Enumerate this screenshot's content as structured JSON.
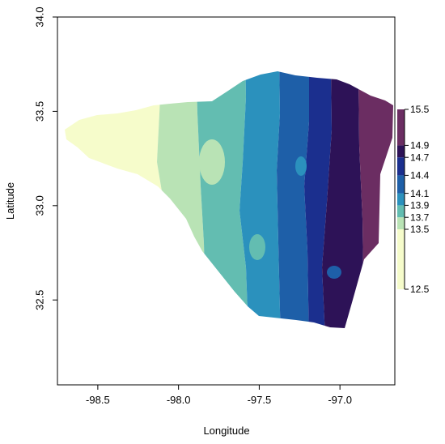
{
  "axes": {
    "xlabel": "Longitude",
    "ylabel": "Latitude",
    "x_ticks": [
      {
        "value": -98.5,
        "label": "-98.5"
      },
      {
        "value": -98.0,
        "label": "-98.0"
      },
      {
        "value": -97.5,
        "label": "-97.5"
      },
      {
        "value": -97.0,
        "label": "-97.0"
      }
    ],
    "y_ticks": [
      {
        "value": 32.5,
        "label": "32.5"
      },
      {
        "value": 33.0,
        "label": "33.0"
      },
      {
        "value": 33.5,
        "label": "33.5"
      },
      {
        "value": 34.0,
        "label": "34.0"
      }
    ],
    "xlim": [
      -98.75,
      -96.66
    ],
    "ylim": [
      32.05,
      34.0
    ]
  },
  "legend": {
    "colors": [
      "#f6fccb",
      "#b9e3b5",
      "#63bdb1",
      "#2b91bd",
      "#1e5fa8",
      "#1b2f8e",
      "#2d1257",
      "#6b2d62"
    ],
    "ticks": [
      {
        "value": 12.5,
        "label": "12.5"
      },
      {
        "value": 13.5,
        "label": "13.5"
      },
      {
        "value": 13.7,
        "label": "13.7"
      },
      {
        "value": 13.9,
        "label": "13.9"
      },
      {
        "value": 14.1,
        "label": "14.1"
      },
      {
        "value": 14.4,
        "label": "14.4"
      },
      {
        "value": 14.7,
        "label": "14.7"
      },
      {
        "value": 14.9,
        "label": "14.9"
      },
      {
        "value": 15.5,
        "label": "15.5"
      }
    ],
    "range": [
      12.5,
      15.5
    ]
  }
}
